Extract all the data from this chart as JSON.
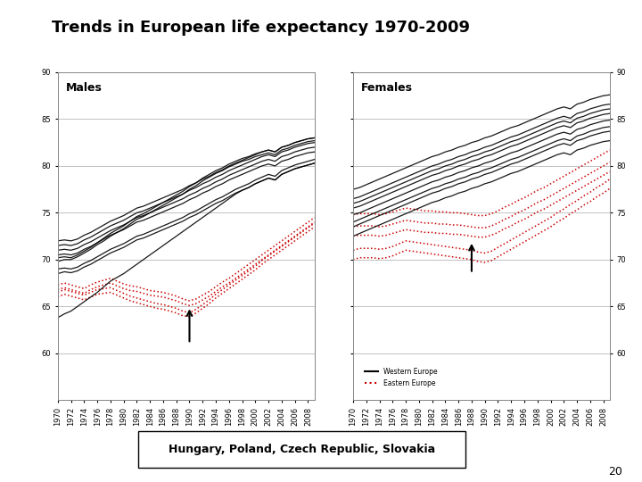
{
  "title": "Trends in European life expectancy 1970-2009",
  "years": [
    1970,
    1971,
    1972,
    1973,
    1974,
    1975,
    1976,
    1977,
    1978,
    1979,
    1980,
    1981,
    1982,
    1983,
    1984,
    1985,
    1986,
    1987,
    1988,
    1989,
    1990,
    1991,
    1992,
    1993,
    1994,
    1995,
    1996,
    1997,
    1998,
    1999,
    2000,
    2001,
    2002,
    2003,
    2004,
    2005,
    2006,
    2007,
    2008,
    2009
  ],
  "ylim": [
    55,
    90
  ],
  "yticks": [
    60,
    65,
    70,
    75,
    80,
    85,
    90
  ],
  "males_western": [
    [
      69.0,
      69.1,
      69.0,
      69.2,
      69.6,
      69.9,
      70.3,
      70.7,
      71.1,
      71.4,
      71.7,
      72.1,
      72.5,
      72.7,
      73.0,
      73.3,
      73.6,
      73.9,
      74.2,
      74.5,
      74.9,
      75.2,
      75.6,
      76.0,
      76.4,
      76.7,
      77.1,
      77.5,
      77.8,
      78.1,
      78.5,
      78.8,
      79.1,
      78.9,
      79.5,
      79.8,
      80.1,
      80.3,
      80.5,
      80.7
    ],
    [
      68.5,
      68.7,
      68.6,
      68.8,
      69.2,
      69.5,
      69.9,
      70.3,
      70.7,
      71.0,
      71.3,
      71.7,
      72.1,
      72.3,
      72.6,
      72.9,
      73.2,
      73.5,
      73.8,
      74.1,
      74.5,
      74.8,
      75.2,
      75.6,
      76.0,
      76.3,
      76.7,
      77.1,
      77.4,
      77.7,
      78.1,
      78.4,
      78.7,
      78.5,
      79.1,
      79.4,
      79.7,
      79.9,
      80.1,
      80.3
    ],
    [
      70.5,
      70.6,
      70.5,
      70.7,
      71.1,
      71.4,
      71.8,
      72.2,
      72.6,
      72.9,
      73.2,
      73.6,
      74.0,
      74.2,
      74.5,
      74.8,
      75.1,
      75.4,
      75.7,
      76.0,
      76.4,
      76.7,
      77.1,
      77.4,
      77.8,
      78.1,
      78.5,
      78.8,
      79.1,
      79.4,
      79.7,
      80.0,
      80.2,
      80.0,
      80.5,
      80.7,
      81.0,
      81.2,
      81.4,
      81.5
    ],
    [
      71.5,
      71.6,
      71.5,
      71.7,
      72.1,
      72.4,
      72.8,
      73.2,
      73.6,
      73.9,
      74.2,
      74.6,
      75.0,
      75.2,
      75.5,
      75.8,
      76.1,
      76.4,
      76.7,
      77.0,
      77.4,
      77.7,
      78.1,
      78.4,
      78.8,
      79.1,
      79.5,
      79.8,
      80.1,
      80.4,
      80.7,
      81.0,
      81.2,
      81.0,
      81.5,
      81.7,
      82.0,
      82.2,
      82.4,
      82.5
    ],
    [
      71.0,
      71.1,
      71.0,
      71.2,
      71.6,
      71.9,
      72.3,
      72.7,
      73.1,
      73.4,
      73.7,
      74.1,
      74.5,
      74.7,
      75.0,
      75.3,
      75.6,
      75.9,
      76.2,
      76.5,
      76.9,
      77.2,
      77.6,
      77.9,
      78.3,
      78.6,
      79.0,
      79.3,
      79.6,
      79.9,
      80.2,
      80.5,
      80.7,
      80.5,
      81.0,
      81.2,
      81.5,
      81.7,
      81.9,
      82.0
    ],
    [
      72.0,
      72.1,
      72.0,
      72.2,
      72.6,
      72.9,
      73.3,
      73.7,
      74.1,
      74.4,
      74.7,
      75.1,
      75.5,
      75.7,
      76.0,
      76.3,
      76.6,
      76.9,
      77.2,
      77.5,
      77.9,
      78.2,
      78.6,
      78.9,
      79.3,
      79.6,
      80.0,
      80.3,
      80.6,
      80.9,
      81.2,
      81.5,
      81.7,
      81.5,
      82.0,
      82.2,
      82.5,
      82.7,
      82.9,
      83.0
    ],
    [
      69.8,
      70.0,
      70.0,
      70.3,
      70.7,
      71.1,
      71.6,
      72.0,
      72.5,
      72.9,
      73.3,
      73.8,
      74.3,
      74.6,
      75.0,
      75.4,
      75.8,
      76.2,
      76.6,
      77.0,
      77.5,
      77.9,
      78.4,
      78.8,
      79.2,
      79.5,
      79.9,
      80.2,
      80.5,
      80.7,
      81.0,
      81.2,
      81.4,
      81.2,
      81.7,
      81.9,
      82.2,
      82.4,
      82.6,
      82.7
    ],
    [
      70.2,
      70.3,
      70.2,
      70.5,
      70.9,
      71.3,
      71.8,
      72.3,
      72.8,
      73.2,
      73.6,
      74.1,
      74.6,
      74.9,
      75.3,
      75.7,
      76.1,
      76.5,
      76.9,
      77.3,
      77.8,
      78.2,
      78.7,
      79.1,
      79.5,
      79.8,
      80.2,
      80.5,
      80.8,
      81.0,
      81.3,
      81.5,
      81.7,
      81.5,
      82.0,
      82.2,
      82.5,
      82.7,
      82.9,
      83.0
    ],
    [
      63.8,
      64.2,
      64.5,
      65.0,
      65.5,
      66.0,
      66.5,
      67.1,
      67.7,
      68.1,
      68.5,
      69.0,
      69.5,
      70.0,
      70.5,
      71.0,
      71.5,
      72.0,
      72.5,
      73.0,
      73.5,
      74.0,
      74.5,
      75.0,
      75.5,
      76.0,
      76.5,
      77.0,
      77.4,
      77.7,
      78.1,
      78.4,
      78.7,
      78.5,
      79.1,
      79.4,
      79.7,
      79.9,
      80.1,
      80.3
    ]
  ],
  "males_eastern": [
    [
      66.8,
      67.0,
      66.8,
      66.6,
      66.4,
      66.8,
      67.1,
      67.3,
      67.5,
      67.2,
      66.9,
      66.7,
      66.6,
      66.4,
      66.2,
      66.1,
      66.0,
      65.8,
      65.6,
      65.3,
      65.1,
      65.3,
      65.7,
      66.1,
      66.6,
      67.1,
      67.5,
      68.0,
      68.5,
      69.0,
      69.5,
      70.0,
      70.5,
      71.0,
      71.5,
      72.0,
      72.5,
      73.0,
      73.5,
      74.0
    ],
    [
      67.3,
      67.5,
      67.3,
      67.1,
      66.9,
      67.3,
      67.6,
      67.8,
      68.0,
      67.7,
      67.4,
      67.2,
      67.1,
      66.9,
      66.7,
      66.6,
      66.5,
      66.3,
      66.1,
      65.8,
      65.6,
      65.8,
      66.2,
      66.6,
      67.1,
      67.6,
      68.0,
      68.5,
      69.0,
      69.5,
      70.0,
      70.5,
      71.0,
      71.5,
      72.0,
      72.5,
      73.0,
      73.5,
      74.0,
      74.5
    ],
    [
      66.0,
      66.3,
      66.1,
      65.9,
      65.7,
      66.0,
      66.3,
      66.4,
      66.5,
      66.2,
      65.9,
      65.6,
      65.4,
      65.2,
      65.0,
      64.8,
      64.7,
      64.5,
      64.3,
      64.0,
      63.9,
      64.3,
      64.8,
      65.3,
      65.9,
      66.4,
      66.9,
      67.4,
      67.9,
      68.4,
      68.9,
      69.5,
      70.0,
      70.5,
      71.0,
      71.5,
      72.0,
      72.5,
      73.0,
      73.5
    ],
    [
      66.5,
      66.8,
      66.6,
      66.4,
      66.2,
      66.5,
      66.8,
      66.9,
      67.0,
      66.7,
      66.4,
      66.1,
      65.9,
      65.7,
      65.5,
      65.3,
      65.2,
      65.0,
      64.8,
      64.5,
      64.3,
      64.7,
      65.2,
      65.7,
      66.3,
      66.8,
      67.3,
      67.8,
      68.3,
      68.8,
      69.3,
      69.9,
      70.4,
      70.9,
      71.4,
      71.9,
      72.4,
      72.9,
      73.4,
      73.9
    ]
  ],
  "females_western": [
    [
      75.5,
      75.7,
      76.0,
      76.3,
      76.6,
      76.9,
      77.2,
      77.5,
      77.8,
      78.1,
      78.4,
      78.7,
      79.0,
      79.2,
      79.5,
      79.7,
      80.0,
      80.2,
      80.5,
      80.7,
      81.0,
      81.2,
      81.5,
      81.8,
      82.1,
      82.3,
      82.6,
      82.9,
      83.2,
      83.5,
      83.8,
      84.1,
      84.3,
      84.1,
      84.6,
      84.8,
      85.1,
      85.3,
      85.5,
      85.6
    ],
    [
      74.8,
      75.0,
      75.3,
      75.6,
      75.9,
      76.2,
      76.5,
      76.8,
      77.1,
      77.4,
      77.7,
      78.0,
      78.3,
      78.5,
      78.8,
      79.0,
      79.3,
      79.5,
      79.8,
      80.0,
      80.3,
      80.5,
      80.8,
      81.1,
      81.4,
      81.6,
      81.9,
      82.2,
      82.5,
      82.8,
      83.1,
      83.4,
      83.6,
      83.4,
      83.9,
      84.1,
      84.4,
      84.6,
      84.8,
      84.9
    ],
    [
      73.5,
      73.8,
      74.1,
      74.4,
      74.7,
      75.0,
      75.3,
      75.6,
      75.9,
      76.2,
      76.5,
      76.8,
      77.1,
      77.3,
      77.6,
      77.8,
      78.1,
      78.3,
      78.6,
      78.8,
      79.1,
      79.3,
      79.6,
      79.9,
      80.2,
      80.4,
      80.7,
      81.0,
      81.3,
      81.6,
      81.9,
      82.2,
      82.4,
      82.2,
      82.7,
      82.9,
      83.2,
      83.4,
      83.6,
      83.7
    ],
    [
      76.5,
      76.7,
      77.0,
      77.3,
      77.6,
      77.9,
      78.2,
      78.5,
      78.8,
      79.1,
      79.4,
      79.7,
      80.0,
      80.2,
      80.5,
      80.7,
      81.0,
      81.2,
      81.5,
      81.7,
      82.0,
      82.2,
      82.5,
      82.8,
      83.1,
      83.3,
      83.6,
      83.9,
      84.2,
      84.5,
      84.8,
      85.1,
      85.3,
      85.1,
      85.6,
      85.8,
      86.1,
      86.3,
      86.5,
      86.6
    ],
    [
      74.0,
      74.3,
      74.6,
      74.9,
      75.2,
      75.5,
      75.8,
      76.1,
      76.4,
      76.7,
      77.0,
      77.3,
      77.6,
      77.8,
      78.1,
      78.3,
      78.6,
      78.8,
      79.1,
      79.3,
      79.6,
      79.8,
      80.1,
      80.4,
      80.7,
      80.9,
      81.2,
      81.5,
      81.8,
      82.1,
      82.4,
      82.7,
      82.9,
      82.7,
      83.2,
      83.4,
      83.7,
      83.9,
      84.1,
      84.2
    ],
    [
      72.5,
      72.8,
      73.1,
      73.4,
      73.7,
      74.0,
      74.3,
      74.6,
      74.9,
      75.2,
      75.5,
      75.8,
      76.1,
      76.3,
      76.6,
      76.8,
      77.1,
      77.3,
      77.6,
      77.8,
      78.1,
      78.3,
      78.6,
      78.9,
      79.2,
      79.4,
      79.7,
      80.0,
      80.3,
      80.6,
      80.9,
      81.2,
      81.4,
      81.2,
      81.7,
      81.9,
      82.2,
      82.4,
      82.6,
      82.7
    ],
    [
      77.5,
      77.7,
      78.0,
      78.3,
      78.6,
      78.9,
      79.2,
      79.5,
      79.8,
      80.1,
      80.4,
      80.7,
      81.0,
      81.2,
      81.5,
      81.7,
      82.0,
      82.2,
      82.5,
      82.7,
      83.0,
      83.2,
      83.5,
      83.8,
      84.1,
      84.3,
      84.6,
      84.9,
      85.2,
      85.5,
      85.8,
      86.1,
      86.3,
      86.1,
      86.6,
      86.8,
      87.1,
      87.3,
      87.5,
      87.6
    ],
    [
      76.0,
      76.2,
      76.5,
      76.8,
      77.1,
      77.4,
      77.7,
      78.0,
      78.3,
      78.6,
      78.9,
      79.2,
      79.5,
      79.7,
      80.0,
      80.2,
      80.5,
      80.7,
      81.0,
      81.2,
      81.5,
      81.7,
      82.0,
      82.3,
      82.6,
      82.8,
      83.1,
      83.4,
      83.7,
      84.0,
      84.3,
      84.6,
      84.8,
      84.6,
      85.1,
      85.3,
      85.6,
      85.8,
      86.0,
      86.1
    ]
  ],
  "females_eastern": [
    [
      72.5,
      72.6,
      72.6,
      72.6,
      72.5,
      72.6,
      72.8,
      73.0,
      73.2,
      73.1,
      73.0,
      72.9,
      72.9,
      72.8,
      72.8,
      72.7,
      72.7,
      72.6,
      72.5,
      72.4,
      72.4,
      72.6,
      72.9,
      73.3,
      73.6,
      74.0,
      74.3,
      74.7,
      75.1,
      75.4,
      75.8,
      76.2,
      76.6,
      77.0,
      77.4,
      77.8,
      78.2,
      78.6,
      79.0,
      79.4
    ],
    [
      73.5,
      73.6,
      73.6,
      73.6,
      73.5,
      73.6,
      73.8,
      74.0,
      74.2,
      74.1,
      74.0,
      73.9,
      73.9,
      73.8,
      73.8,
      73.7,
      73.7,
      73.6,
      73.5,
      73.4,
      73.4,
      73.6,
      73.9,
      74.3,
      74.6,
      75.0,
      75.3,
      75.7,
      76.1,
      76.4,
      76.8,
      77.2,
      77.6,
      78.0,
      78.4,
      78.8,
      79.2,
      79.6,
      80.0,
      80.4
    ],
    [
      74.8,
      74.9,
      74.9,
      74.9,
      74.8,
      74.9,
      75.1,
      75.3,
      75.5,
      75.4,
      75.3,
      75.2,
      75.2,
      75.1,
      75.1,
      75.0,
      75.0,
      74.9,
      74.8,
      74.7,
      74.7,
      74.9,
      75.2,
      75.6,
      75.9,
      76.3,
      76.6,
      77.0,
      77.4,
      77.7,
      78.1,
      78.5,
      78.9,
      79.3,
      79.7,
      80.1,
      80.5,
      80.9,
      81.3,
      81.7
    ],
    [
      71.0,
      71.2,
      71.2,
      71.2,
      71.1,
      71.2,
      71.4,
      71.7,
      72.0,
      71.9,
      71.8,
      71.7,
      71.6,
      71.5,
      71.4,
      71.3,
      71.2,
      71.1,
      71.0,
      70.8,
      70.7,
      70.9,
      71.3,
      71.7,
      72.1,
      72.5,
      72.9,
      73.3,
      73.7,
      74.1,
      74.5,
      75.0,
      75.4,
      75.9,
      76.3,
      76.8,
      77.2,
      77.7,
      78.1,
      78.6
    ],
    [
      70.0,
      70.2,
      70.2,
      70.2,
      70.1,
      70.2,
      70.4,
      70.7,
      71.0,
      70.9,
      70.8,
      70.7,
      70.6,
      70.5,
      70.4,
      70.3,
      70.2,
      70.1,
      70.0,
      69.8,
      69.7,
      69.9,
      70.3,
      70.7,
      71.1,
      71.5,
      71.9,
      72.3,
      72.7,
      73.1,
      73.5,
      74.0,
      74.4,
      74.9,
      75.3,
      75.8,
      76.2,
      76.7,
      77.1,
      77.6
    ]
  ],
  "legend_western_label": "Western Europe",
  "legend_eastern_label": "Eastern Europe",
  "page_number": "20",
  "black_color": "#000000",
  "red_color": "#cc0000",
  "annotation_box_text": "Hungary, Poland, Czech Republic, Slovakia"
}
